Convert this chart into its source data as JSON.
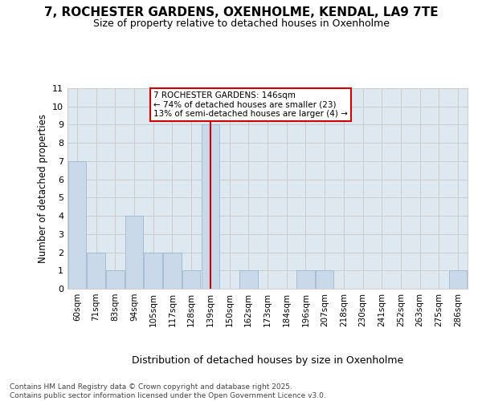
{
  "title_line1": "7, ROCHESTER GARDENS, OXENHOLME, KENDAL, LA9 7TE",
  "title_line2": "Size of property relative to detached houses in Oxenholme",
  "xlabel": "Distribution of detached houses by size in Oxenholme",
  "ylabel": "Number of detached properties",
  "categories": [
    "60sqm",
    "71sqm",
    "83sqm",
    "94sqm",
    "105sqm",
    "117sqm",
    "128sqm",
    "139sqm",
    "150sqm",
    "162sqm",
    "173sqm",
    "184sqm",
    "196sqm",
    "207sqm",
    "218sqm",
    "230sqm",
    "241sqm",
    "252sqm",
    "263sqm",
    "275sqm",
    "286sqm"
  ],
  "values": [
    7,
    2,
    1,
    4,
    2,
    2,
    1,
    9,
    0,
    1,
    0,
    0,
    1,
    1,
    0,
    0,
    0,
    0,
    0,
    0,
    1
  ],
  "bar_color": "#c9d9ea",
  "bar_edge_color": "#a0b8cc",
  "highlight_index": 7,
  "highlight_line_color": "#cc0000",
  "ylim": [
    0,
    11
  ],
  "yticks": [
    0,
    1,
    2,
    3,
    4,
    5,
    6,
    7,
    8,
    9,
    10,
    11
  ],
  "annotation_text": "7 ROCHESTER GARDENS: 146sqm\n← 74% of detached houses are smaller (23)\n13% of semi-detached houses are larger (4) →",
  "annotation_box_color": "#ffffff",
  "annotation_box_edge": "#cc0000",
  "footer": "Contains HM Land Registry data © Crown copyright and database right 2025.\nContains public sector information licensed under the Open Government Licence v3.0.",
  "bg_color": "#ffffff",
  "grid_color": "#cccccc",
  "fig_width": 6.0,
  "fig_height": 5.0,
  "dpi": 100
}
